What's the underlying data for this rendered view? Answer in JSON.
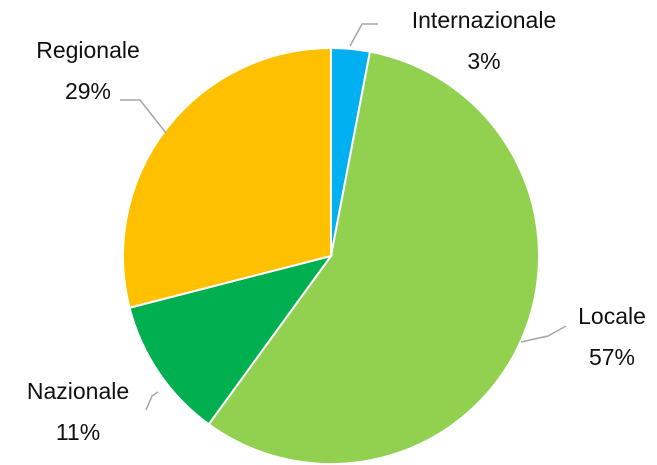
{
  "chart_data": {
    "type": "pie",
    "categories": [
      "Internazionale",
      "Locale",
      "Nazionale",
      "Regionale"
    ],
    "values": [
      3,
      57,
      11,
      29
    ],
    "value_labels": [
      "3%",
      "57%",
      "11%",
      "29%"
    ],
    "colors": [
      "#00b0f0",
      "#92d050",
      "#00b050",
      "#ffc000"
    ]
  }
}
